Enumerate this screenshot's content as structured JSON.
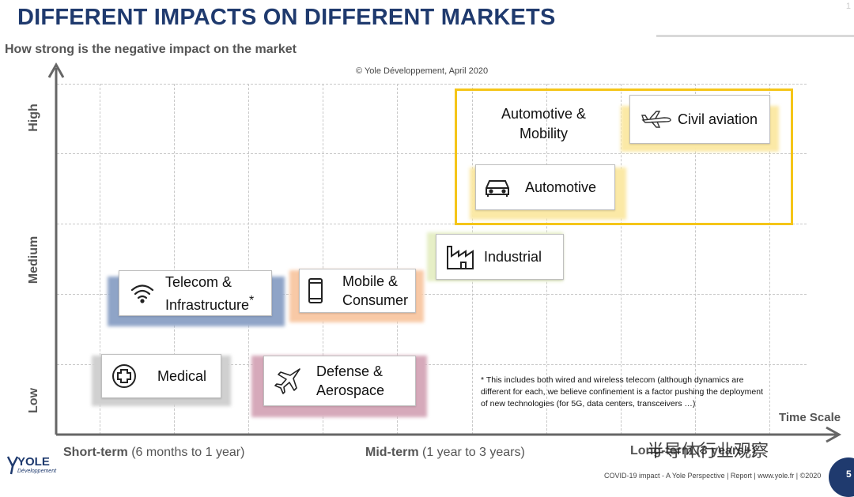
{
  "title": "DIFFERENT IMPACTS ON DIFFERENT MARKETS",
  "subtitle": "How strong is the negative impact on the market",
  "copyright": "© Yole Développement, April 2020",
  "y_axis": {
    "high": "High",
    "medium": "Medium",
    "low": "Low"
  },
  "x_axis": {
    "time_scale": "Time Scale",
    "short_term": {
      "bold": "Short-term",
      "rest": " (6 months to 1 year)"
    },
    "mid_term": {
      "bold": "Mid-term",
      "rest": " (1 year to 3 years)"
    },
    "long_term": "Long-term (3 years+)"
  },
  "group_label": {
    "line1": "Automotive &",
    "line2": "Mobility"
  },
  "markets": {
    "civil_aviation": {
      "label": "Civil aviation",
      "icon": "airplane-icon",
      "shadow_color": "#fbe9a6"
    },
    "automotive": {
      "label": "Automotive",
      "icon": "car-icon",
      "shadow_color": "#fbe9a6"
    },
    "industrial": {
      "label": "Industrial",
      "icon": "factory-icon",
      "shadow_color": "#e6efc6"
    },
    "telecom": {
      "line1": "Telecom &",
      "line2": "Infrastructure",
      "asterisk": "*",
      "icon": "wifi-icon",
      "shadow_color": "#8fa4c7"
    },
    "mobile": {
      "line1": "Mobile &",
      "line2": "Consumer",
      "icon": "phone-icon",
      "shadow_color": "#f8c9a6"
    },
    "medical": {
      "label": "Medical",
      "icon": "medical-cross-icon",
      "shadow_color": "#d0d0d0"
    },
    "defense": {
      "line1": "Defense &",
      "line2": "Aerospace",
      "icon": "fighter-jet-icon",
      "shadow_color": "#d6a9ba"
    }
  },
  "footnote": "* This includes both wired and wireless telecom (although dynamics are different for each, we believe confinement is a factor pushing the deployment of new technologies (for 5G, data centers, transceivers …)",
  "footer": "COVID-19 impact - A Yole Perspective | Report | www.yole.fr | ©2020",
  "page_number": "5",
  "logo": {
    "name": "YOLE",
    "sub": "Développement"
  },
  "watermark": "半导体行业观察",
  "colors": {
    "title": "#1f3a6e",
    "group_border": "#f5c518",
    "axis": "#666666"
  }
}
